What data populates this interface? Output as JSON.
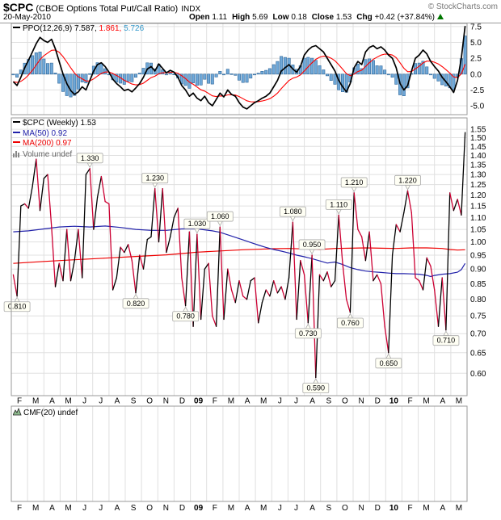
{
  "header": {
    "symbol": "$CPC",
    "name": "(CBOE Options Total Put/Call Ratio)",
    "exchange": "INDX",
    "credit": "© StockCharts.com",
    "date": "20-May-2010",
    "quote": {
      "open_label": "Open",
      "open_value": "1.11",
      "high_label": "High",
      "high_value": "5.69",
      "low_label": "Low",
      "low_value": "0.18",
      "close_label": "Close",
      "close_value": "1.53",
      "chg_label": "Chg",
      "chg_value": "+0.42 (+37.84%)",
      "direction_icon": "up-triangle"
    }
  },
  "legends": {
    "ppo": {
      "label": "PPO(12,26,9)",
      "value_ppo": "7.587,",
      "value_signal": "1.861,",
      "value_hist": "5.726"
    },
    "price": {
      "symbol": "$CPC (Weekly) 1.53",
      "ma50": "MA(50) 0.92",
      "ma200": "MA(200) 0.97",
      "volume": "Volume undef"
    },
    "cmf": {
      "label": "CMF(20) undef"
    }
  },
  "colors": {
    "ppo_line": "#000000",
    "ppo_signal": "#ff0000",
    "hist_fill": "#6fa8d8",
    "hist_stroke": "#31689b",
    "price_up": "#000000",
    "price_down": "#cc0033",
    "ma50": "#2222aa",
    "ma200": "#ee0000",
    "grid": "#e0e0e0",
    "border": "#999999",
    "callout_fill": "#fffff4",
    "callout_border": "#aaaaaa",
    "up_triangle": "#007700",
    "credit": "#777777"
  },
  "x_axis": {
    "months": [
      "F",
      "M",
      "A",
      "M",
      "J",
      "J",
      "A",
      "S",
      "O",
      "N",
      "D",
      "09",
      "F",
      "M",
      "A",
      "M",
      "J",
      "J",
      "A",
      "S",
      "O",
      "N",
      "D",
      "10",
      "F",
      "M",
      "A",
      "M"
    ],
    "bold_labels": [
      "09",
      "10"
    ],
    "range": "Feb-2008 to May-2010, weekly"
  },
  "chart_data": [
    {
      "panel": "ppo",
      "type": "line",
      "title": "PPO(12,26,9)",
      "ylim": [
        -6.4,
        8.0
      ],
      "yticks": [
        "7.5",
        "5.0",
        "2.5",
        "0.0",
        "-2.5",
        "-5.0"
      ],
      "last_values": {
        "ppo": 7.587,
        "signal": 1.861,
        "histogram": 5.726
      },
      "series": [
        {
          "name": "PPO",
          "values": [
            -1.2,
            -1.8,
            -0.5,
            1.0,
            2.2,
            3.5,
            4.8,
            5.8,
            5.3,
            5.0,
            5.5,
            4.0,
            2.0,
            0.0,
            -1.5,
            -2.6,
            -3.2,
            -2.8,
            -2.0,
            -2.5,
            -1.0,
            0.5,
            1.5,
            1.8,
            1.2,
            0.3,
            -0.8,
            -1.5,
            -2.0,
            -2.6,
            -2.4,
            -2.8,
            -2.2,
            -1.5,
            -0.5,
            0.8,
            1.2,
            0.5,
            1.6,
            0.9,
            0.2,
            0.6,
            0.3,
            -0.5,
            -1.8,
            -2.5,
            -3.5,
            -3.0,
            -3.8,
            -4.2,
            -3.5,
            -4.5,
            -5.0,
            -4.0,
            -3.0,
            -3.6,
            -2.5,
            -3.2,
            -3.5,
            -4.5,
            -5.2,
            -5.5,
            -5.0,
            -4.5,
            -4.2,
            -3.8,
            -3.5,
            -3.0,
            -2.0,
            -1.0,
            0.5,
            1.0,
            1.5,
            0.8,
            0.3,
            1.2,
            3.0,
            3.8,
            4.3,
            4.5,
            4.0,
            3.5,
            2.5,
            1.5,
            0.5,
            -1.0,
            -2.0,
            -2.8,
            -1.5,
            1.0,
            2.0,
            1.5,
            3.5,
            4.2,
            4.5,
            4.0,
            4.3,
            3.8,
            3.0,
            2.5,
            1.0,
            -1.5,
            -2.5,
            -1.8,
            0.5,
            2.5,
            3.0,
            3.8,
            3.2,
            2.0,
            1.2,
            0.5,
            -0.5,
            -1.2,
            -2.0,
            -2.9,
            -1.0,
            2.5,
            7.587
          ]
        },
        {
          "name": "Signal",
          "derivation": "EMA(9) of PPO",
          "last_value": 1.861
        },
        {
          "name": "Histogram",
          "derivation": "PPO minus Signal",
          "last_value": 5.726
        }
      ]
    },
    {
      "panel": "price",
      "type": "line",
      "title": "$CPC Weekly close",
      "scale": "log",
      "ylim": [
        0.55,
        1.62
      ],
      "yticks": [
        "1.55",
        "1.50",
        "1.45",
        "1.40",
        "1.35",
        "1.30",
        "1.25",
        "1.20",
        "1.15",
        "1.10",
        "1.05",
        "1.00",
        "0.95",
        "0.90",
        "0.85",
        "0.80",
        "0.75",
        "0.70",
        "0.65",
        "0.60"
      ],
      "last_close": 1.53,
      "weekly_close": [
        0.88,
        0.81,
        1.15,
        1.16,
        1.14,
        1.24,
        1.38,
        1.13,
        1.28,
        1.3,
        1.06,
        0.84,
        0.92,
        0.86,
        1.05,
        0.86,
        0.93,
        1.05,
        0.87,
        1.3,
        1.33,
        1.05,
        1.19,
        1.29,
        1.17,
        1.16,
        0.83,
        0.87,
        0.98,
        0.96,
        0.99,
        0.93,
        0.82,
        0.95,
        0.9,
        1.01,
        1.02,
        1.23,
        1.0,
        1.23,
        0.96,
        1.02,
        1.1,
        1.14,
        0.87,
        0.78,
        1.04,
        0.72,
        1.03,
        0.74,
        0.9,
        0.92,
        0.75,
        0.72,
        1.06,
        0.74,
        0.9,
        0.83,
        0.79,
        0.86,
        0.81,
        0.8,
        0.86,
        0.87,
        0.73,
        0.79,
        0.83,
        0.81,
        0.86,
        0.82,
        0.84,
        0.8,
        0.87,
        1.08,
        0.74,
        0.93,
        0.88,
        0.73,
        0.95,
        0.59,
        0.88,
        0.86,
        0.89,
        0.84,
        0.86,
        1.11,
        0.92,
        0.8,
        0.76,
        1.21,
        1.05,
        1.02,
        0.93,
        1.04,
        0.86,
        0.88,
        0.85,
        0.72,
        0.65,
        0.95,
        1.07,
        1.04,
        1.12,
        1.22,
        1.12,
        0.87,
        0.86,
        0.83,
        0.94,
        0.91,
        0.83,
        0.72,
        0.87,
        0.71,
        1.21,
        1.13,
        1.18,
        1.11,
        1.53
      ],
      "ma50": {
        "name": "MA(50)",
        "last_value": 0.92,
        "points": [
          [
            0,
            1.04
          ],
          [
            4,
            1.044
          ],
          [
            8,
            1.052
          ],
          [
            12,
            1.06
          ],
          [
            16,
            1.063
          ],
          [
            20,
            1.06
          ],
          [
            24,
            1.064
          ],
          [
            28,
            1.058
          ],
          [
            32,
            1.05
          ],
          [
            36,
            1.046
          ],
          [
            40,
            1.046
          ],
          [
            44,
            1.052
          ],
          [
            48,
            1.052
          ],
          [
            52,
            1.044
          ],
          [
            54,
            1.038
          ],
          [
            56,
            1.028
          ],
          [
            58,
            1.018
          ],
          [
            60,
            1.008
          ],
          [
            62,
            0.998
          ],
          [
            64,
            0.988
          ],
          [
            66,
            0.979
          ],
          [
            68,
            0.971
          ],
          [
            70,
            0.965
          ],
          [
            72,
            0.958
          ],
          [
            74,
            0.95
          ],
          [
            76,
            0.944
          ],
          [
            78,
            0.937
          ],
          [
            80,
            0.929
          ],
          [
            82,
            0.921
          ],
          [
            84,
            0.925
          ],
          [
            86,
            0.916
          ],
          [
            88,
            0.905
          ],
          [
            90,
            0.898
          ],
          [
            92,
            0.893
          ],
          [
            94,
            0.89
          ],
          [
            96,
            0.888
          ],
          [
            98,
            0.886
          ],
          [
            100,
            0.884
          ],
          [
            102,
            0.884
          ],
          [
            104,
            0.883
          ],
          [
            106,
            0.882
          ],
          [
            108,
            0.878
          ],
          [
            109,
            0.874
          ],
          [
            110,
            0.878
          ],
          [
            112,
            0.882
          ],
          [
            114,
            0.884
          ],
          [
            116,
            0.889
          ],
          [
            117,
            0.898
          ],
          [
            118,
            0.92
          ]
        ]
      },
      "ma200": {
        "name": "MA(200)",
        "last_value": 0.97,
        "points": [
          [
            0,
            0.92
          ],
          [
            8,
            0.927
          ],
          [
            16,
            0.933
          ],
          [
            24,
            0.939
          ],
          [
            32,
            0.945
          ],
          [
            40,
            0.951
          ],
          [
            44,
            0.956
          ],
          [
            48,
            0.961
          ],
          [
            52,
            0.964
          ],
          [
            56,
            0.967
          ],
          [
            60,
            0.97
          ],
          [
            64,
            0.972
          ],
          [
            68,
            0.974
          ],
          [
            72,
            0.975
          ],
          [
            76,
            0.973
          ],
          [
            80,
            0.971
          ],
          [
            84,
            0.975
          ],
          [
            88,
            0.976
          ],
          [
            92,
            0.977
          ],
          [
            96,
            0.976
          ],
          [
            100,
            0.975
          ],
          [
            104,
            0.977
          ],
          [
            108,
            0.977
          ],
          [
            112,
            0.975
          ],
          [
            114,
            0.971
          ],
          [
            116,
            0.969
          ],
          [
            118,
            0.97
          ]
        ]
      },
      "annotations": [
        {
          "week": 1,
          "value": 0.81,
          "label": "0.810",
          "position": "below"
        },
        {
          "week": 20,
          "value": 1.33,
          "label": "1.330",
          "position": "above"
        },
        {
          "week": 32,
          "value": 0.82,
          "label": "0.820",
          "position": "below"
        },
        {
          "week": 37,
          "value": 1.23,
          "label": "1.230",
          "position": "above"
        },
        {
          "week": 45,
          "value": 0.78,
          "label": "0.780",
          "position": "below"
        },
        {
          "week": 48,
          "value": 1.03,
          "label": "1.030",
          "position": "above"
        },
        {
          "week": 54,
          "value": 1.06,
          "label": "1.060",
          "position": "above"
        },
        {
          "week": 73,
          "value": 1.08,
          "label": "1.080",
          "position": "above"
        },
        {
          "week": 77,
          "value": 0.73,
          "label": "0.730",
          "position": "below"
        },
        {
          "week": 78,
          "value": 0.95,
          "label": "0.950",
          "position": "above"
        },
        {
          "week": 79,
          "value": 0.59,
          "label": "0.590",
          "position": "below"
        },
        {
          "week": 85,
          "value": 1.11,
          "label": "1.110",
          "position": "above"
        },
        {
          "week": 88,
          "value": 0.76,
          "label": "0.760",
          "position": "below"
        },
        {
          "week": 89,
          "value": 1.21,
          "label": "1.210",
          "position": "above"
        },
        {
          "week": 98,
          "value": 0.65,
          "label": "0.650",
          "position": "below"
        },
        {
          "week": 103,
          "value": 1.22,
          "label": "1.220",
          "position": "above"
        },
        {
          "week": 113,
          "value": 0.71,
          "label": "0.710",
          "position": "below"
        }
      ]
    },
    {
      "panel": "cmf",
      "type": "area",
      "title": "CMF(20)",
      "status": "undef",
      "values": []
    }
  ]
}
